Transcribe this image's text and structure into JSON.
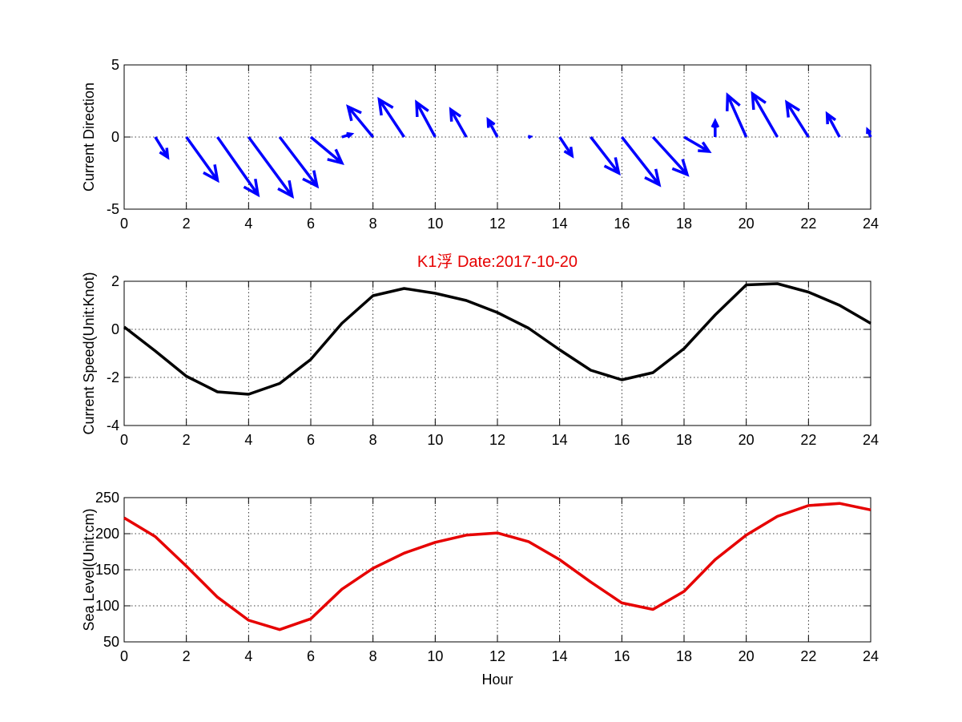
{
  "chart_data": [
    {
      "type": "quiver",
      "title": "",
      "xlabel": "",
      "ylabel": "Current Direction",
      "xlim": [
        0,
        24
      ],
      "ylim": [
        -5,
        5
      ],
      "xticks": [
        0,
        2,
        4,
        6,
        8,
        10,
        12,
        14,
        16,
        18,
        20,
        22,
        24
      ],
      "yticks": [
        -5,
        0,
        5
      ],
      "grid": true,
      "color": "#0000ff",
      "arrows": [
        {
          "x": 1,
          "y": 0,
          "u": 0.4,
          "v": -1.4
        },
        {
          "x": 2,
          "y": 0,
          "u": 1.0,
          "v": -3.0
        },
        {
          "x": 3,
          "y": 0,
          "u": 1.3,
          "v": -4.0
        },
        {
          "x": 4,
          "y": 0,
          "u": 1.4,
          "v": -4.1
        },
        {
          "x": 5,
          "y": 0,
          "u": 1.2,
          "v": -3.4
        },
        {
          "x": 6,
          "y": 0,
          "u": 1.0,
          "v": -1.8
        },
        {
          "x": 7,
          "y": 0,
          "u": 0.3,
          "v": 0.2
        },
        {
          "x": 8,
          "y": 0,
          "u": -0.8,
          "v": 2.1
        },
        {
          "x": 9,
          "y": 0,
          "u": -0.8,
          "v": 2.6
        },
        {
          "x": 10,
          "y": 0,
          "u": -0.6,
          "v": 2.4
        },
        {
          "x": 11,
          "y": 0,
          "u": -0.5,
          "v": 1.9
        },
        {
          "x": 12,
          "y": 0,
          "u": -0.3,
          "v": 1.2
        },
        {
          "x": 13,
          "y": 0,
          "u": 0.05,
          "v": 0.02
        },
        {
          "x": 14,
          "y": 0,
          "u": 0.4,
          "v": -1.3
        },
        {
          "x": 15,
          "y": 0,
          "u": 0.9,
          "v": -2.5
        },
        {
          "x": 16,
          "y": 0,
          "u": 1.2,
          "v": -3.3
        },
        {
          "x": 17,
          "y": 0,
          "u": 1.1,
          "v": -2.6
        },
        {
          "x": 18,
          "y": 0,
          "u": 0.8,
          "v": -1.0
        },
        {
          "x": 19,
          "y": 0,
          "u": 0.0,
          "v": 1.1
        },
        {
          "x": 20,
          "y": 0,
          "u": -0.6,
          "v": 2.9
        },
        {
          "x": 21,
          "y": 0,
          "u": -0.8,
          "v": 3.0
        },
        {
          "x": 22,
          "y": 0,
          "u": -0.7,
          "v": 2.4
        },
        {
          "x": 23,
          "y": 0,
          "u": -0.4,
          "v": 1.6
        },
        {
          "x": 24,
          "y": 0,
          "u": -0.1,
          "v": 0.5
        }
      ]
    },
    {
      "type": "line",
      "title": "K1浮   Date:2017-10-20",
      "title_color": "#e60000",
      "xlabel": "",
      "ylabel": "Current Speed(Unit:Knot)",
      "xlim": [
        0,
        24
      ],
      "ylim": [
        -4,
        2
      ],
      "xticks": [
        0,
        2,
        4,
        6,
        8,
        10,
        12,
        14,
        16,
        18,
        20,
        22,
        24
      ],
      "yticks": [
        -4,
        -2,
        0,
        2
      ],
      "grid": true,
      "series": [
        {
          "color": "#000000",
          "x": [
            0,
            1,
            2,
            3,
            4,
            5,
            6,
            7,
            8,
            9,
            10,
            11,
            12,
            13,
            14,
            15,
            16,
            17,
            18,
            19,
            20,
            21,
            22,
            23,
            24
          ],
          "values": [
            0.1,
            -0.9,
            -1.95,
            -2.6,
            -2.7,
            -2.25,
            -1.25,
            0.25,
            1.4,
            1.7,
            1.5,
            1.2,
            0.7,
            0.05,
            -0.85,
            -1.7,
            -2.1,
            -1.8,
            -0.8,
            0.6,
            1.85,
            1.9,
            1.55,
            1.0,
            0.25
          ]
        }
      ]
    },
    {
      "type": "line",
      "title": "",
      "xlabel": "Hour",
      "ylabel": "Sea Level(Unit:cm)",
      "xlim": [
        0,
        24
      ],
      "ylim": [
        50,
        250
      ],
      "xticks": [
        0,
        2,
        4,
        6,
        8,
        10,
        12,
        14,
        16,
        18,
        20,
        22,
        24
      ],
      "yticks": [
        50,
        100,
        150,
        200,
        250
      ],
      "grid": true,
      "series": [
        {
          "color": "#e60000",
          "x": [
            0,
            1,
            2,
            3,
            4,
            5,
            6,
            7,
            8,
            9,
            10,
            11,
            12,
            13,
            14,
            15,
            16,
            17,
            18,
            19,
            20,
            21,
            22,
            23,
            24
          ],
          "values": [
            222,
            196,
            155,
            112,
            80,
            67,
            82,
            123,
            152,
            173,
            188,
            198,
            201,
            189,
            164,
            133,
            104,
            95,
            120,
            164,
            198,
            224,
            239,
            242,
            233
          ]
        }
      ]
    }
  ]
}
